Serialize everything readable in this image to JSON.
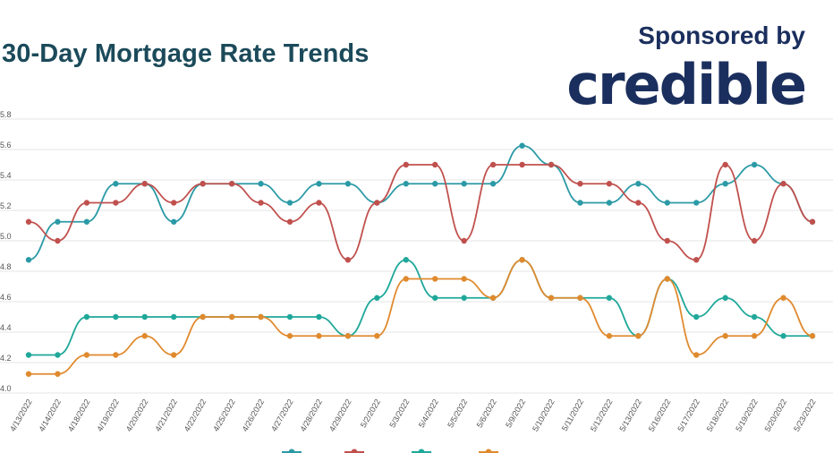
{
  "header": {
    "title": "30-Day Mortgage Rate Trends",
    "sponsor_label": "Sponsored by",
    "sponsor_brand": "credible"
  },
  "colors": {
    "title": "#1b4a5a",
    "brand": "#1b2f5e",
    "grid": "#e6e6e6"
  },
  "chart_data": {
    "type": "line",
    "title": "30-Day Mortgage Rate Trends",
    "xlabel": "",
    "ylabel": "",
    "grid": true,
    "legend_position": "bottom",
    "x": [
      "4/13/2022",
      "4/14/2022",
      "4/18/2022",
      "4/19/2022",
      "4/20/2022",
      "4/21/2022",
      "4/22/2022",
      "4/25/2022",
      "4/26/2022",
      "4/27/2022",
      "4/28/2022",
      "4/29/2022",
      "5/2/2022",
      "5/3/2022",
      "5/4/2022",
      "5/5/2022",
      "5/6/2022",
      "5/9/2022",
      "5/10/2022",
      "5/11/2022",
      "5/12/2022",
      "5/13/2022",
      "5/16/2022",
      "5/17/2022",
      "5/18/2022",
      "5/19/2022",
      "5/20/2022",
      "5/23/2022"
    ],
    "y_ticks": [
      "4.0",
      "4.2",
      "4.4",
      "4.6",
      "4.8",
      "5.0",
      "5.2",
      "5.4",
      "5.6",
      "5.8"
    ],
    "ylim": [
      4.0,
      5.8
    ],
    "series": [
      {
        "name": "",
        "color": "#2b9aa6",
        "values": [
          4.875,
          5.125,
          5.125,
          5.375,
          5.375,
          5.125,
          5.375,
          5.375,
          5.375,
          5.25,
          5.375,
          5.375,
          5.25,
          5.375,
          5.375,
          5.375,
          5.375,
          5.625,
          5.5,
          5.25,
          5.25,
          5.375,
          5.25,
          5.25,
          5.375,
          5.5,
          5.375,
          5.125
        ]
      },
      {
        "name": "",
        "color": "#c0504d",
        "values": [
          5.125,
          5.0,
          5.25,
          5.25,
          5.375,
          5.25,
          5.375,
          5.375,
          5.25,
          5.125,
          5.25,
          4.875,
          5.25,
          5.5,
          5.5,
          5.0,
          5.5,
          5.5,
          5.5,
          5.375,
          5.375,
          5.25,
          5.0,
          4.875,
          5.5,
          5.0,
          5.375,
          5.125
        ]
      },
      {
        "name": "",
        "color": "#1fa89a",
        "values": [
          4.25,
          4.25,
          4.5,
          4.5,
          4.5,
          4.5,
          4.5,
          4.5,
          4.5,
          4.5,
          4.5,
          4.375,
          4.625,
          4.875,
          4.625,
          4.625,
          4.625,
          4.875,
          4.625,
          4.625,
          4.625,
          4.375,
          4.75,
          4.5,
          4.625,
          4.5,
          4.375,
          4.375
        ]
      },
      {
        "name": "",
        "color": "#e08a2e",
        "values": [
          4.125,
          4.125,
          4.25,
          4.25,
          4.375,
          4.25,
          4.5,
          4.5,
          4.5,
          4.375,
          4.375,
          4.375,
          4.375,
          4.75,
          4.75,
          4.75,
          4.625,
          4.875,
          4.625,
          4.625,
          4.375,
          4.375,
          4.75,
          4.25,
          4.375,
          4.375,
          4.625,
          4.375
        ]
      }
    ]
  }
}
